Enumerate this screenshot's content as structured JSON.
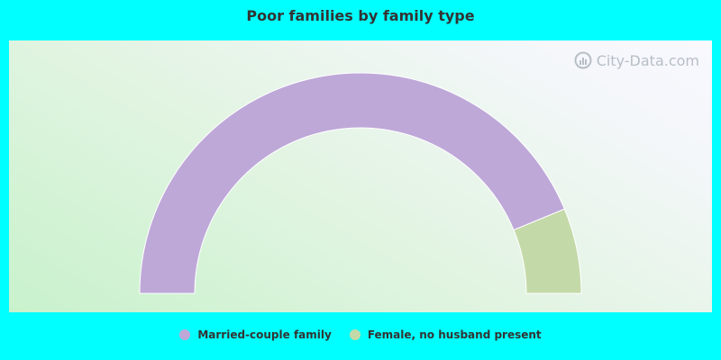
{
  "chart_data": {
    "type": "pie",
    "variant": "half-donut",
    "title": "Poor families by family type",
    "categories": [
      "Married-couple family",
      "Female, no husband present"
    ],
    "values": [
      87.5,
      12.5
    ],
    "unit": "%",
    "colors": [
      "#bea8d8",
      "#c4d9a8"
    ],
    "legend_position": "bottom-center"
  },
  "watermark": {
    "text": "City-Data.com",
    "icon": "city-data-logo-icon"
  },
  "colors": {
    "background": "#00ffff",
    "title": "#333333"
  }
}
